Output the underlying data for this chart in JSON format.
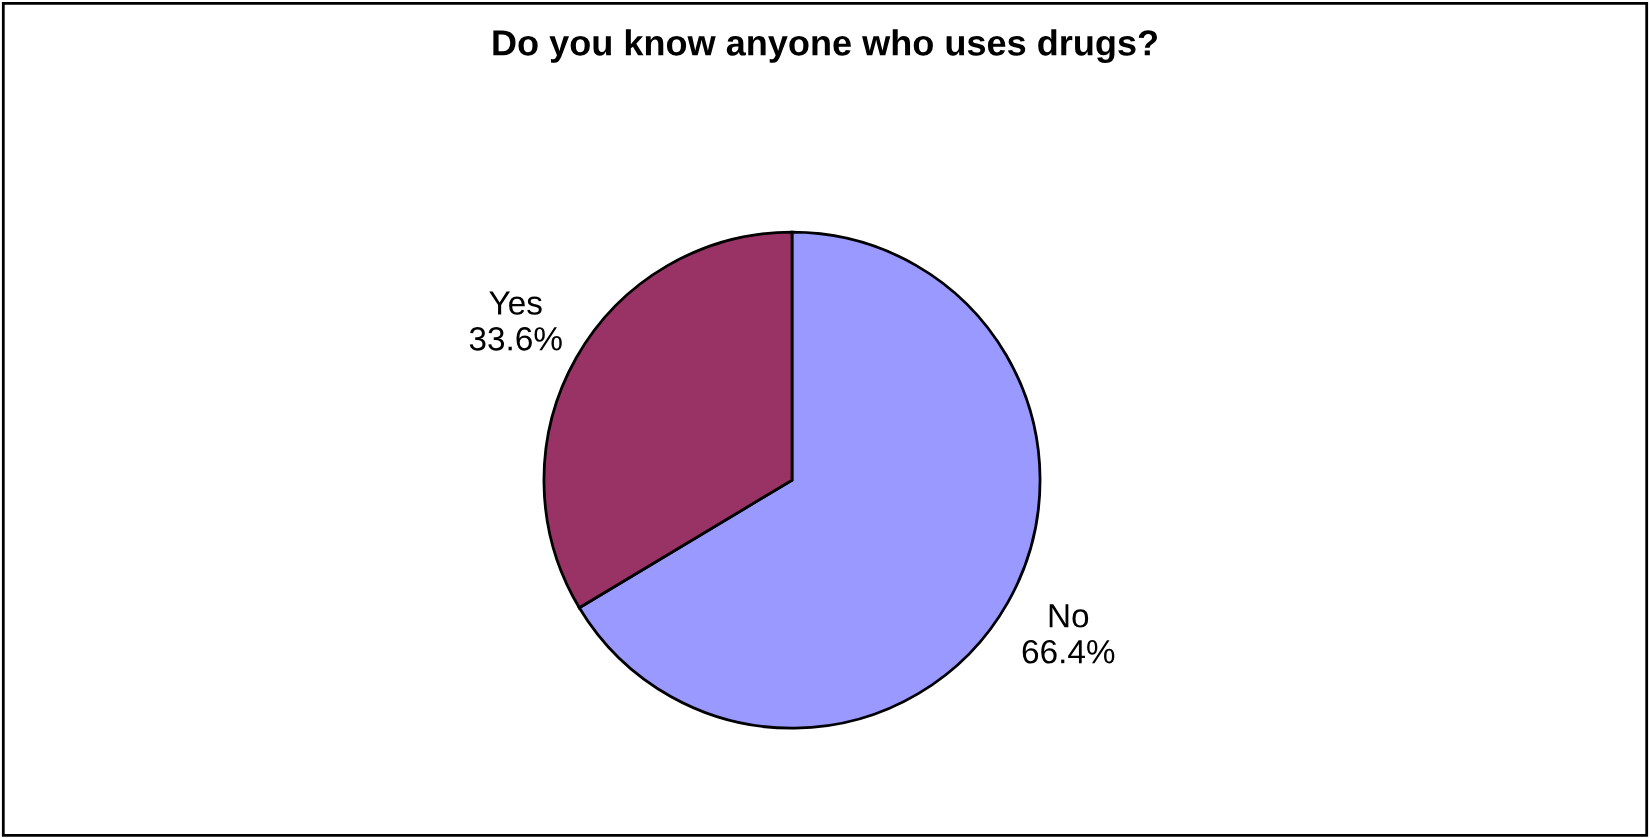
{
  "chart_data": {
    "type": "pie",
    "title": "Do you know anyone who uses drugs?",
    "categories": [
      "No",
      "Yes"
    ],
    "values": [
      66.4,
      33.6
    ],
    "colors": [
      "#9999ff",
      "#993366"
    ],
    "value_labels": [
      "66.4%",
      "33.6%"
    ],
    "legend": false
  }
}
